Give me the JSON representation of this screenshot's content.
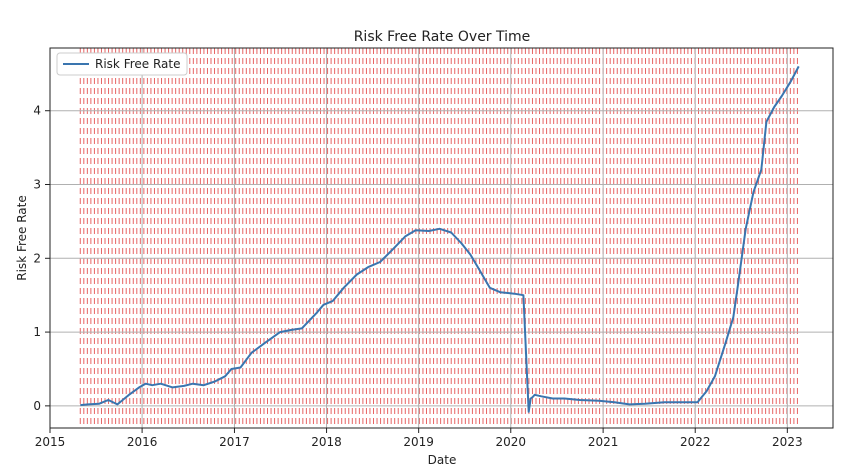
{
  "chart_data": {
    "type": "line",
    "title": "Risk Free Rate Over Time",
    "xlabel": "Date",
    "ylabel": "Risk Free Rate",
    "xlim": [
      "2015-01-01",
      "2023-07-01"
    ],
    "ylim": [
      -0.3,
      4.85
    ],
    "x_ticks": [
      "2015-01-01",
      "2016-01-01",
      "2017-01-01",
      "2018-01-01",
      "2019-01-01",
      "2020-01-01",
      "2021-01-01",
      "2022-01-01",
      "2023-01-01"
    ],
    "x_tick_labels": [
      "2015",
      "2016",
      "2017",
      "2018",
      "2019",
      "2020",
      "2021",
      "2022",
      "2023"
    ],
    "y_ticks": [
      0,
      1,
      2,
      3,
      4
    ],
    "y_tick_labels": [
      "0",
      "1",
      "2",
      "3",
      "4"
    ],
    "grid": true,
    "legend": {
      "location": "top-left",
      "entries": [
        "Risk Free Rate"
      ]
    },
    "colors": {
      "series": "#3a75af",
      "vlines": "#e24a4a",
      "grid": "#b0b0b0"
    },
    "series": [
      {
        "name": "Risk Free Rate",
        "x": [
          "2015-05-01",
          "2015-06-01",
          "2015-07-15",
          "2015-08-20",
          "2015-09-25",
          "2015-11-10",
          "2015-12-20",
          "2016-01-15",
          "2016-02-10",
          "2016-03-15",
          "2016-05-01",
          "2016-06-15",
          "2016-07-20",
          "2016-09-01",
          "2016-10-15",
          "2016-11-25",
          "2016-12-20",
          "2017-01-25",
          "2017-03-10",
          "2017-05-01",
          "2017-07-01",
          "2017-08-15",
          "2017-09-25",
          "2017-11-20",
          "2017-12-20",
          "2018-01-25",
          "2018-03-10",
          "2018-05-01",
          "2018-06-15",
          "2018-08-01",
          "2018-09-20",
          "2018-11-10",
          "2018-12-20",
          "2019-02-10",
          "2019-03-25",
          "2019-05-10",
          "2019-06-20",
          "2019-07-25",
          "2019-08-20",
          "2019-10-10",
          "2019-11-20",
          "2020-01-15",
          "2020-02-20",
          "2020-03-05",
          "2020-03-12",
          "2020-03-20",
          "2020-03-28",
          "2020-04-05",
          "2020-05-01",
          "2020-06-15",
          "2020-08-01",
          "2020-10-01",
          "2020-12-15",
          "2021-02-15",
          "2021-04-15",
          "2021-06-15",
          "2021-09-01",
          "2021-11-15",
          "2022-01-10",
          "2022-02-15",
          "2022-03-20",
          "2022-05-01",
          "2022-06-01",
          "2022-06-20",
          "2022-07-20",
          "2022-08-20",
          "2022-09-20",
          "2022-10-10",
          "2022-11-10",
          "2022-12-10",
          "2023-01-15",
          "2023-02-15"
        ],
        "y": [
          0.01,
          0.02,
          0.03,
          0.08,
          0.02,
          0.15,
          0.25,
          0.3,
          0.28,
          0.3,
          0.25,
          0.27,
          0.3,
          0.28,
          0.33,
          0.4,
          0.5,
          0.52,
          0.72,
          0.85,
          1.0,
          1.03,
          1.05,
          1.25,
          1.37,
          1.42,
          1.6,
          1.78,
          1.88,
          1.95,
          2.12,
          2.3,
          2.38,
          2.37,
          2.4,
          2.35,
          2.2,
          2.05,
          1.9,
          1.6,
          1.54,
          1.52,
          1.5,
          0.45,
          -0.08,
          0.1,
          0.12,
          0.15,
          0.13,
          0.1,
          0.1,
          0.08,
          0.07,
          0.05,
          0.02,
          0.03,
          0.05,
          0.05,
          0.05,
          0.2,
          0.4,
          0.85,
          1.2,
          1.65,
          2.4,
          2.9,
          3.2,
          3.85,
          4.05,
          4.2,
          4.4,
          4.6
        ]
      }
    ]
  }
}
